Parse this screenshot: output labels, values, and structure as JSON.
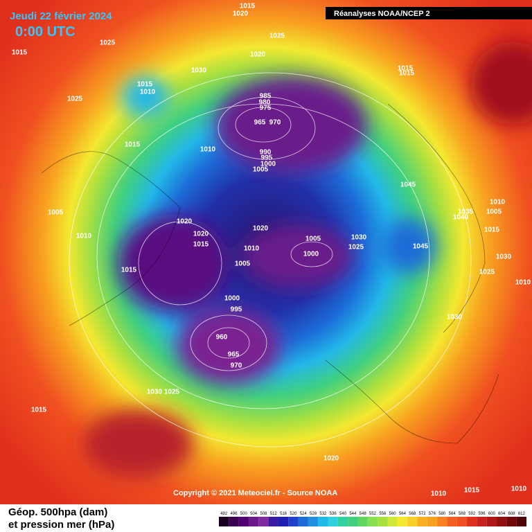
{
  "header": {
    "date": "Jeudi 22 février 2024",
    "time": "0:00 UTC",
    "source_banner": "Réanalyses NOAA/NCEP 2"
  },
  "footer": {
    "copyright": "Copyright © 2021 Meteociel.fr - Source NOAA",
    "caption_line1": "Géop. 500hpa (dam)",
    "caption_line2": "et pression mer (hPa)"
  },
  "legend": {
    "values": [
      492,
      496,
      500,
      504,
      508,
      512,
      516,
      520,
      524,
      528,
      532,
      536,
      540,
      544,
      548,
      552,
      556,
      560,
      564,
      568,
      572,
      576,
      580,
      584,
      588,
      592,
      596,
      600,
      604,
      608,
      612
    ]
  },
  "isobar_labels": [
    1015,
    1020,
    1025,
    1025,
    1015,
    1020,
    1030,
    1015,
    1015,
    1015,
    1010,
    1025,
    985,
    980,
    975,
    965,
    970,
    1015,
    1010,
    990,
    995,
    1000,
    1005,
    1045,
    1035,
    1040,
    1010,
    1005,
    1005,
    1020,
    1020,
    1015,
    1010,
    1020,
    1005,
    1030,
    1015,
    1010,
    1025,
    1045,
    1000,
    1030,
    1005,
    1015,
    1025,
    1010,
    1000,
    995,
    1030,
    960,
    965,
    970,
    1030,
    1025,
    1015,
    1020,
    1010,
    1015,
    1010
  ]
}
